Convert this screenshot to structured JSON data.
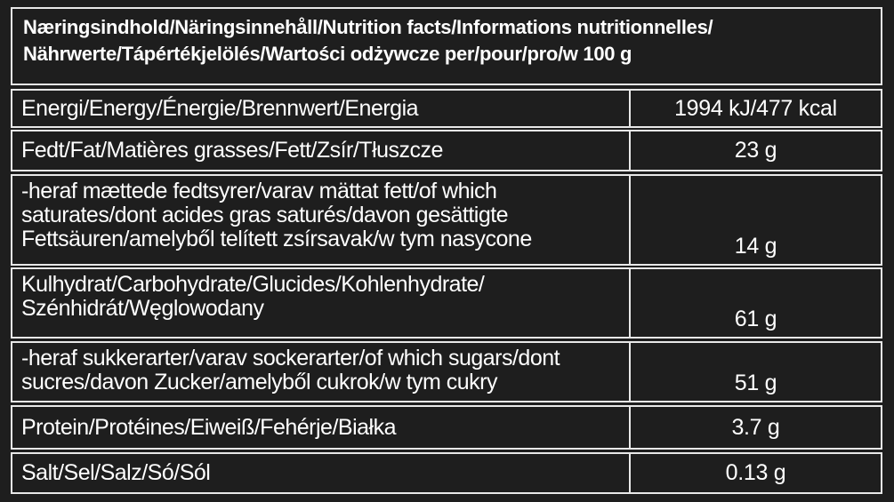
{
  "header": {
    "lines": [
      "Næringsindhold/Näringsinnehåll/Nutrition facts/Informations nutritionnelles/",
      "Nährwerte/Tápértékjelölés/Wartości odżywcze per/pour/pro/w 100 g"
    ]
  },
  "table": {
    "rows": [
      {
        "label": [
          "Energi/Energy/Énergie/Brennwert/Energia"
        ],
        "value": "1994 kJ/477 kcal"
      },
      {
        "label": [
          "Fedt/Fat/Matières grasses/Fett/Zsír/Tłuszcze"
        ],
        "value": "23 g"
      },
      {
        "label": [
          "-heraf mættede fedtsyrer/varav mättat fett/of which",
          "saturates/dont acides gras saturés/davon gesättigte",
          "Fettsäuren/amelyből telített zsírsavak/w tym nasycone"
        ],
        "value": "14 g"
      },
      {
        "label": [
          "Kulhydrat/Carbohydrate/Glucides/Kohlenhydrate/",
          "Szénhidrát/Węglowodany"
        ],
        "value": "61 g"
      },
      {
        "label": [
          "-heraf sukkerarter/varav sockerarter/of which sugars/dont",
          "sucres/davon Zucker/amelyből cukrok/w tym cukry"
        ],
        "value": "51 g"
      },
      {
        "label": [
          "Protein/Protéines/Eiweiß/Fehérje/Białka"
        ],
        "value": "3.7 g"
      },
      {
        "label": [
          "Salt/Sel/Salz/Só/Sól"
        ],
        "value": "0.13 g"
      }
    ]
  }
}
